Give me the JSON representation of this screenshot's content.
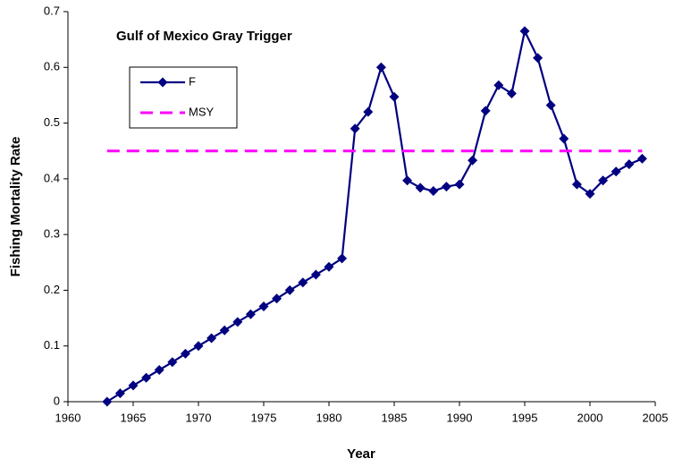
{
  "chart_data": {
    "type": "line",
    "title": "Gulf of Mexico Gray Trigger",
    "x_label": "Year",
    "y_label": "Fishing Mortality Rate",
    "xlim": [
      1960,
      2005
    ],
    "xticks": [
      1960,
      1965,
      1970,
      1975,
      1980,
      1985,
      1990,
      1995,
      2000,
      2005
    ],
    "ylim": [
      0,
      0.7
    ],
    "yticks": [
      0,
      0.1,
      0.2,
      0.3,
      0.4,
      0.5,
      0.6,
      0.7
    ],
    "legend": "upper-left",
    "series": [
      {
        "name": "F",
        "color": "#000080",
        "marker": "diamond",
        "dashed": false,
        "x": [
          1963,
          1964,
          1965,
          1966,
          1967,
          1968,
          1969,
          1970,
          1971,
          1972,
          1973,
          1974,
          1975,
          1976,
          1977,
          1978,
          1979,
          1980,
          1981,
          1982,
          1983,
          1984,
          1985,
          1986,
          1987,
          1988,
          1989,
          1990,
          1991,
          1992,
          1993,
          1994,
          1995,
          1996,
          1997,
          1998,
          1999,
          2000,
          2001,
          2002,
          2003,
          2004
        ],
        "values": [
          0,
          0.015,
          0.029,
          0.043,
          0.057,
          0.071,
          0.086,
          0.1,
          0.114,
          0.128,
          0.143,
          0.157,
          0.171,
          0.185,
          0.2,
          0.214,
          0.228,
          0.242,
          0.257,
          0.49,
          0.52,
          0.6,
          0.547,
          0.397,
          0.384,
          0.378,
          0.386,
          0.39,
          0.433,
          0.522,
          0.568,
          0.553,
          0.665,
          0.617,
          0.532,
          0.472,
          0.39,
          0.373,
          0.397,
          0.413,
          0.426,
          0.436
        ]
      },
      {
        "name": "MSY",
        "color": "#ff00ff",
        "marker": "none",
        "dashed": true,
        "x": [
          1963,
          2004
        ],
        "values": [
          0.45,
          0.45
        ]
      }
    ]
  }
}
